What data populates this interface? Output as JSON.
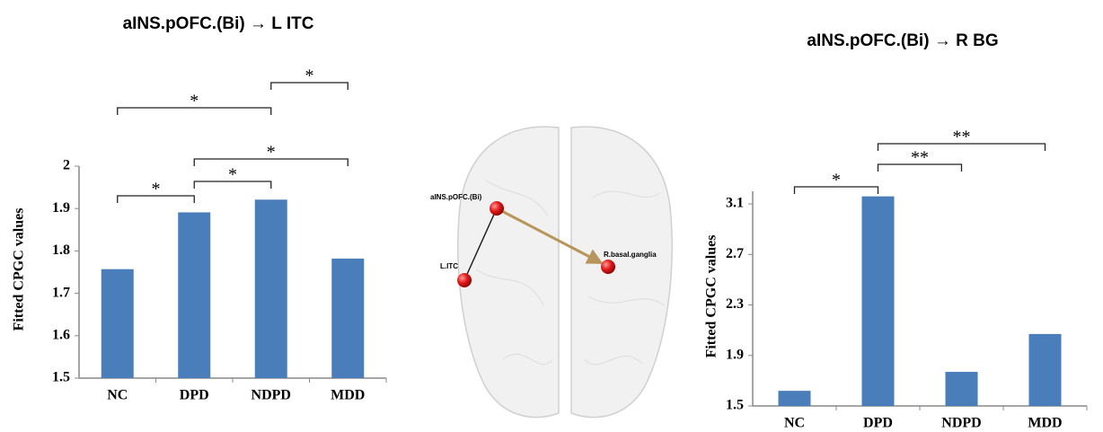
{
  "chart_data": [
    {
      "type": "bar",
      "title": "aINS.pOFC.(Bi) → L ITC",
      "y_label": "Fitted CPGC values",
      "categories": [
        "NC",
        "DPD",
        "NDPD",
        "MDD"
      ],
      "values": [
        1.757,
        1.891,
        1.921,
        1.782
      ],
      "color": "#4a7ebb",
      "ylim": [
        1.5,
        2.0
      ],
      "yticks": [
        1.5,
        1.6,
        1.7,
        1.8,
        1.9,
        2
      ],
      "comparisons": [
        {
          "groups": [
            "NC",
            "DPD"
          ],
          "label": "*"
        },
        {
          "groups": [
            "DPD",
            "NDPD"
          ],
          "label": "*"
        },
        {
          "groups": [
            "DPD",
            "MDD"
          ],
          "label": "*"
        },
        {
          "groups": [
            "NC",
            "NDPD"
          ],
          "label": "*"
        },
        {
          "groups": [
            "NDPD",
            "MDD"
          ],
          "label": "*"
        }
      ]
    },
    {
      "type": "bar",
      "title": "aINS.pOFC.(Bi) → R BG",
      "y_label": "Fitted CPGC values",
      "categories": [
        "NC",
        "DPD",
        "NDPD",
        "MDD"
      ],
      "values": [
        1.62,
        3.16,
        1.77,
        2.07
      ],
      "color": "#4a7ebb",
      "ylim": [
        1.5,
        3.2
      ],
      "yticks": [
        1.5,
        1.9,
        2.3,
        2.7,
        3.1
      ],
      "comparisons": [
        {
          "groups": [
            "NC",
            "DPD"
          ],
          "label": "*"
        },
        {
          "groups": [
            "DPD",
            "NDPD"
          ],
          "label": "**"
        },
        {
          "groups": [
            "DPD",
            "MDD"
          ],
          "label": "**"
        }
      ]
    }
  ],
  "brain": {
    "nodes": [
      {
        "label": "aINS.pOFC.(Bi)"
      },
      {
        "label": "L.ITC"
      },
      {
        "label": "R.basal.ganglia"
      }
    ]
  }
}
